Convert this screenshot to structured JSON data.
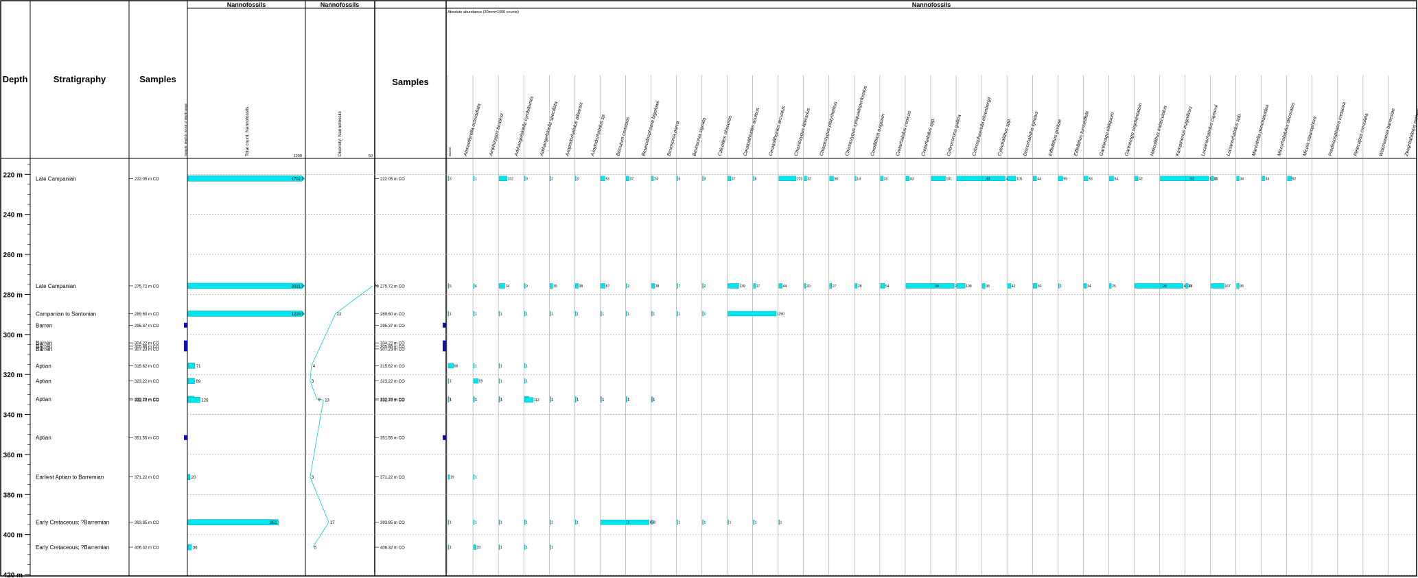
{
  "headers": {
    "depth": "Depth",
    "stratigraphy": "Stratigraphy",
    "samples_left": "Samples",
    "samples_right": "Samples",
    "group_total": "Nannofossils",
    "group_diversity": "Nannofossils",
    "group_species": "Nannofossils",
    "total_label": "Total count: Nannofossils",
    "total_max": "1200",
    "diversity_label": "Diversity: Nannofossils",
    "diversity_max": "50",
    "range_label": "Sample: depth is BASE of depth range",
    "barren_label": "Barren",
    "abundance_note": "Absolute abundance (30mm=1000 counts)"
  },
  "colors": {
    "bar": "#00e5ee",
    "barren": "#1010b0",
    "line": "#00ced1",
    "grid": "#999999"
  },
  "chart_data": {
    "type": "table",
    "depth_axis": {
      "min": 212,
      "max": 420,
      "ticks": [
        220,
        240,
        260,
        280,
        300,
        320,
        340,
        360,
        380,
        400,
        420
      ],
      "unit": "m"
    },
    "samples": [
      {
        "depth": 222.05,
        "label": "222.05 m CO",
        "strat": "Late Campanian",
        "total": 1702,
        "diversity": null,
        "barren": false
      },
      {
        "depth": 275.72,
        "label": "275.72 m CO",
        "strat": "Late Campanian",
        "total": 3031,
        "diversity": 76,
        "barren": false
      },
      {
        "depth": 289.6,
        "label": "289.60 m CO",
        "strat": "Campanian to Santonian",
        "total": 1226,
        "diversity": 22,
        "barren": false
      },
      {
        "depth": 295.37,
        "label": "295.37 m CO",
        "strat": "Barren",
        "total": null,
        "diversity": null,
        "barren": true
      },
      {
        "depth": 304.22,
        "label": "304.22 m CO",
        "strat": "Barren",
        "total": null,
        "diversity": null,
        "barren": true
      },
      {
        "depth": 305.86,
        "label": "305.86 m CO",
        "strat": "Barren",
        "total": null,
        "diversity": null,
        "barren": true
      },
      {
        "depth": 307.23,
        "label": "307.23 m CO",
        "strat": "Barren",
        "total": null,
        "diversity": null,
        "barren": true
      },
      {
        "depth": 315.62,
        "label": "315.62 m CO",
        "strat": "Aptian",
        "total": 71,
        "diversity": 4,
        "barren": false
      },
      {
        "depth": 323.22,
        "label": "323.22 m CO",
        "strat": "Aptian",
        "total": 69,
        "diversity": 3,
        "barren": false
      },
      {
        "depth": 332.23,
        "label": "332.23 m CO",
        "strat": "Aptian",
        "total": 65,
        "diversity": 8,
        "barren": false
      },
      {
        "depth": 332.7,
        "label": "332.70 m CO",
        "strat": "",
        "total": 126,
        "diversity": 13,
        "barren": false
      },
      {
        "depth": 351.55,
        "label": "351.55 m CO",
        "strat": "Aptian",
        "total": null,
        "diversity": null,
        "barren": true
      },
      {
        "depth": 371.22,
        "label": "371.22 m CO",
        "strat": "Earliest Aptian to Barremian",
        "total": 20,
        "diversity": 3,
        "barren": false
      },
      {
        "depth": 393.85,
        "label": "393.85 m CO",
        "strat": "Early Cretaceous; ?Barremian",
        "total": 951,
        "diversity": 17,
        "barren": false
      },
      {
        "depth": 406.32,
        "label": "406.32 m CO",
        "strat": "Early Cretaceous; ?Barremian",
        "total": 36,
        "diversity": 5,
        "barren": false
      }
    ],
    "species": [
      "Ahmuellerella octoradiata",
      "Amphizygus brooksii",
      "Arkhangelskiella cymbiformis",
      "Arkhangelskiella specillata",
      "Axopodorhabdus albianus",
      "Axopodorhabdus sp.",
      "Biscutum constans",
      "Braarudosphaera bigelowii",
      "Broinsonia parca",
      "Broinsonia signata",
      "Calculites obscurus",
      "Ceratolithoides aculeus",
      "Ceratolithoides arcuatus",
      "Chiastozygus litterarius",
      "Chiastozygus platyrhethus",
      "Chiastozygus synquadriperforatus",
      "Corollithion exiguum",
      "Cretarhabdus conicus",
      "Cretarhabdus spp.",
      "Cribrocorona gallica",
      "Cribrosphaerella ehrenbergii",
      "Cylindralithus spp.",
      "Discorhabdus ignotus",
      "Eiffellithus gorkae",
      "Eiffellithus turriseiffelii",
      "Gartnerago obliquum",
      "Gartnerago segmentatum",
      "Helicolithus trabeculatus",
      "Kamptnerius magnificus",
      "Lucianorhabdus cayeuxii",
      "Lucianorhabdus spp.",
      "Manivitella pemmatoidea",
      "Microrhabdulus decoratus",
      "Micula staurophora",
      "Prediscosphaera cretacea",
      "Retecapsa crenulata",
      "Watznaueria barnesiae",
      "Zeugrhabdotus embergeri"
    ],
    "counts": [
      {
        "depth": 222.05,
        "values": [
          3,
          1,
          102,
          9,
          2,
          3,
          53,
          37,
          24,
          6,
          9,
          37,
          8,
          223,
          32,
          50,
          14,
          33,
          43,
          181,
          4000,
          43,
          105,
          44,
          55,
          53,
          54,
          42,
          1000,
          52,
          31,
          34,
          34,
          52
        ]
      },
      {
        "depth": 275.72,
        "values": [
          5,
          6,
          74,
          9,
          35,
          38,
          57,
          2,
          38,
          7,
          2,
          139,
          27,
          44,
          20,
          27,
          28,
          54,
          2998,
          38,
          108,
          38,
          42,
          50,
          1,
          34,
          25,
          4000,
          26,
          28,
          167,
          35
        ]
      },
      {
        "depth": 289.6,
        "values": [
          1,
          1,
          1,
          1,
          1,
          1,
          1,
          1,
          1,
          1,
          1,
          1260
        ]
      },
      {
        "depth": 315.62,
        "values": [
          68,
          1,
          1,
          1
        ]
      },
      {
        "depth": 323.22,
        "values": [
          1,
          59,
          1,
          1
        ]
      },
      {
        "depth": 332.23,
        "values": [
          1,
          1,
          1,
          57,
          1,
          1,
          1,
          1,
          1
        ]
      },
      {
        "depth": 332.7,
        "values": [
          1,
          1,
          1,
          112,
          1,
          1,
          1,
          1,
          1
        ]
      },
      {
        "depth": 371.22,
        "values": [
          19,
          1
        ]
      },
      {
        "depth": 393.85,
        "values": [
          1,
          1,
          1,
          1,
          2,
          1,
          858,
          1,
          1,
          1,
          1,
          1,
          1,
          1
        ]
      },
      {
        "depth": 406.32,
        "values": [
          1,
          33,
          1,
          1,
          1
        ]
      }
    ]
  }
}
